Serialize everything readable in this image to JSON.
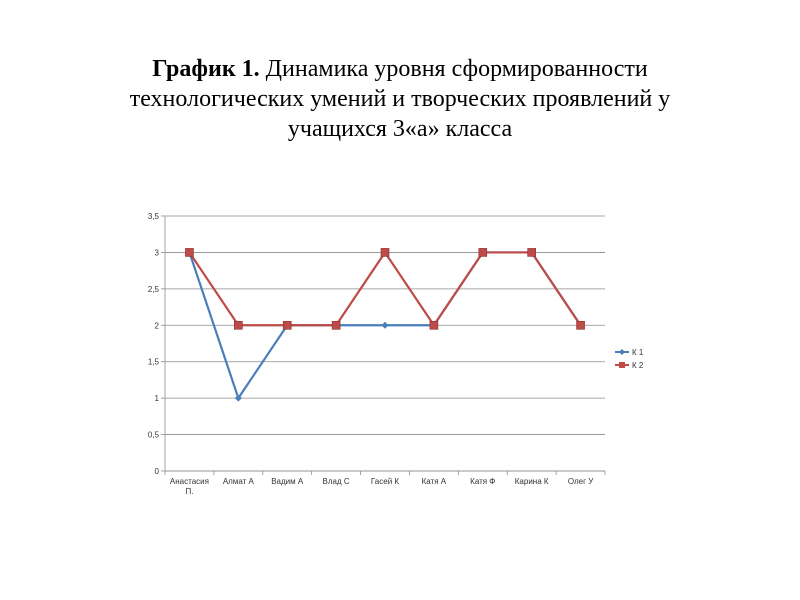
{
  "title": {
    "bold": "График 1.",
    "line1": "Динамика уровня сформированности",
    "line2": "технологических умений и творческих проявлений у",
    "line3": "учащихся 3«а» класса"
  },
  "chart_data": {
    "type": "line",
    "categories": [
      "Анастасия П.",
      "Алмат А",
      "Вадим А",
      "Влад С",
      "Гасей К",
      "Катя А",
      "Катя Ф",
      "Карина К",
      "Олег У"
    ],
    "series": [
      {
        "name": "К 1",
        "values": [
          3,
          1,
          2,
          2,
          2,
          2,
          3,
          3,
          2
        ],
        "color": "#4a7ebb",
        "marker": "diamond"
      },
      {
        "name": "К 2",
        "values": [
          3,
          2,
          2,
          2,
          3,
          2,
          3,
          3,
          2
        ],
        "color": "#be4b48",
        "marker": "square"
      }
    ],
    "yticks": [
      "0",
      "0,5",
      "1",
      "1,5",
      "2",
      "2,5",
      "3",
      "3,5"
    ],
    "ylim": [
      0,
      3.5
    ],
    "grid": true,
    "legend": "right"
  }
}
